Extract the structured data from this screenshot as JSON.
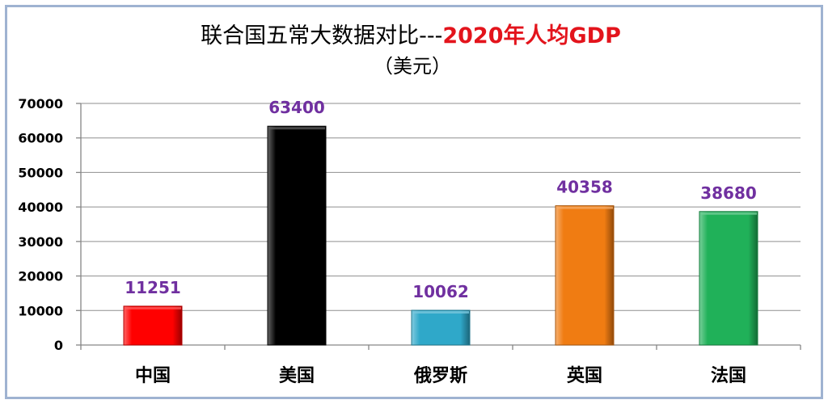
{
  "chart_data": {
    "type": "bar",
    "title": "联合国五常大数据对比---",
    "title_emphasis": "2020年人均GDP",
    "title_emphasis_color": "#e3141c",
    "subtitle": "（美元）",
    "categories": [
      "中国",
      "美国",
      "俄罗斯",
      "英国",
      "法国"
    ],
    "values": [
      11251,
      63400,
      10062,
      40358,
      38680
    ],
    "colors": [
      "#ff0000",
      "#000000",
      "#2fa8c9",
      "#f07c12",
      "#20b159"
    ],
    "label_color": "#7030a0",
    "ylim": [
      0,
      70000
    ],
    "yticks": [
      0,
      10000,
      20000,
      30000,
      40000,
      50000,
      60000,
      70000
    ],
    "grid": true
  }
}
